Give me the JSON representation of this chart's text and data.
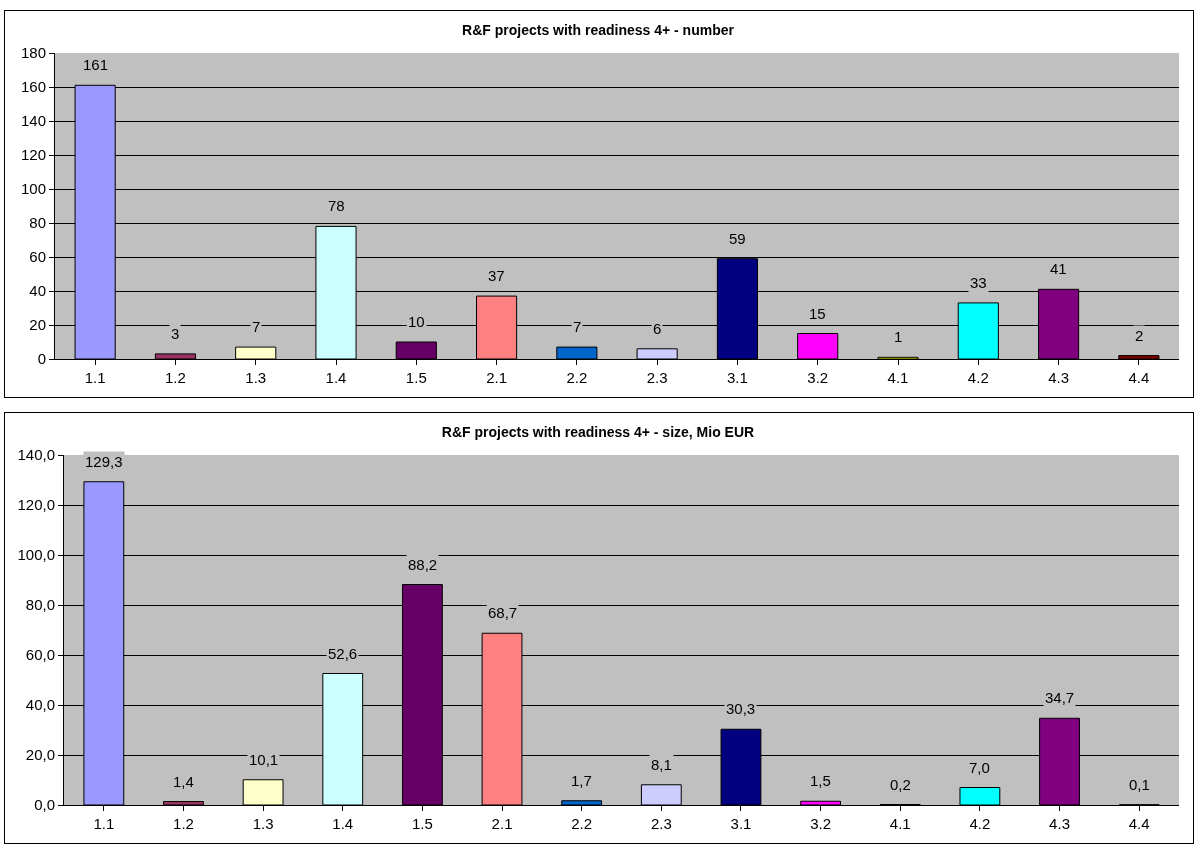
{
  "chart_data": [
    {
      "type": "bar",
      "title": "R&F projects with readiness 4+ - number",
      "categories": [
        "1.1",
        "1.2",
        "1.3",
        "1.4",
        "1.5",
        "2.1",
        "2.2",
        "2.3",
        "3.1",
        "3.2",
        "4.1",
        "4.2",
        "4.3",
        "4.4"
      ],
      "values": [
        161,
        3,
        7,
        78,
        10,
        37,
        7,
        6,
        59,
        15,
        1,
        33,
        41,
        2
      ],
      "colors": [
        "#9999ff",
        "#993366",
        "#ffffcc",
        "#ccffff",
        "#660066",
        "#ff8080",
        "#0066cc",
        "#ccccff",
        "#000080",
        "#ff00ff",
        "#ffff00",
        "#00ffff",
        "#800080",
        "#800000"
      ],
      "ylim": [
        0,
        180
      ],
      "yticks": [
        0,
        20,
        40,
        60,
        80,
        100,
        120,
        140,
        160,
        180
      ],
      "grid": "y",
      "data_labels": true
    },
    {
      "type": "bar",
      "title": "R&F projects with readiness 4+ - size, Mio EUR",
      "categories": [
        "1.1",
        "1.2",
        "1.3",
        "1.4",
        "1.5",
        "2.1",
        "2.2",
        "2.3",
        "3.1",
        "3.2",
        "4.1",
        "4.2",
        "4.3",
        "4.4"
      ],
      "values": [
        129.3,
        1.4,
        10.1,
        52.6,
        88.2,
        68.7,
        1.7,
        8.1,
        30.3,
        1.5,
        0.2,
        7.0,
        34.7,
        0.1
      ],
      "value_labels": [
        "129,3",
        "1,4",
        "10,1",
        "52,6",
        "88,2",
        "68,7",
        "1,7",
        "8,1",
        "30,3",
        "1,5",
        "0,2",
        "7,0",
        "34,7",
        "0,1"
      ],
      "colors": [
        "#9999ff",
        "#993366",
        "#ffffcc",
        "#ccffff",
        "#660066",
        "#ff8080",
        "#0066cc",
        "#ccccff",
        "#000080",
        "#ff00ff",
        "#ffff00",
        "#00ffff",
        "#800080",
        "#800000"
      ],
      "ylim": [
        0,
        140
      ],
      "yticks": [
        {
          "value": 0,
          "label": "0,0"
        },
        {
          "value": 20,
          "label": "20,0"
        },
        {
          "value": 40,
          "label": "40,0"
        },
        {
          "value": 60,
          "label": "60,0"
        },
        {
          "value": 80,
          "label": "80,0"
        },
        {
          "value": 100,
          "label": "100,0"
        },
        {
          "value": 120,
          "label": "120,0"
        },
        {
          "value": 140,
          "label": "140,0"
        }
      ],
      "grid": "y"
    }
  ]
}
